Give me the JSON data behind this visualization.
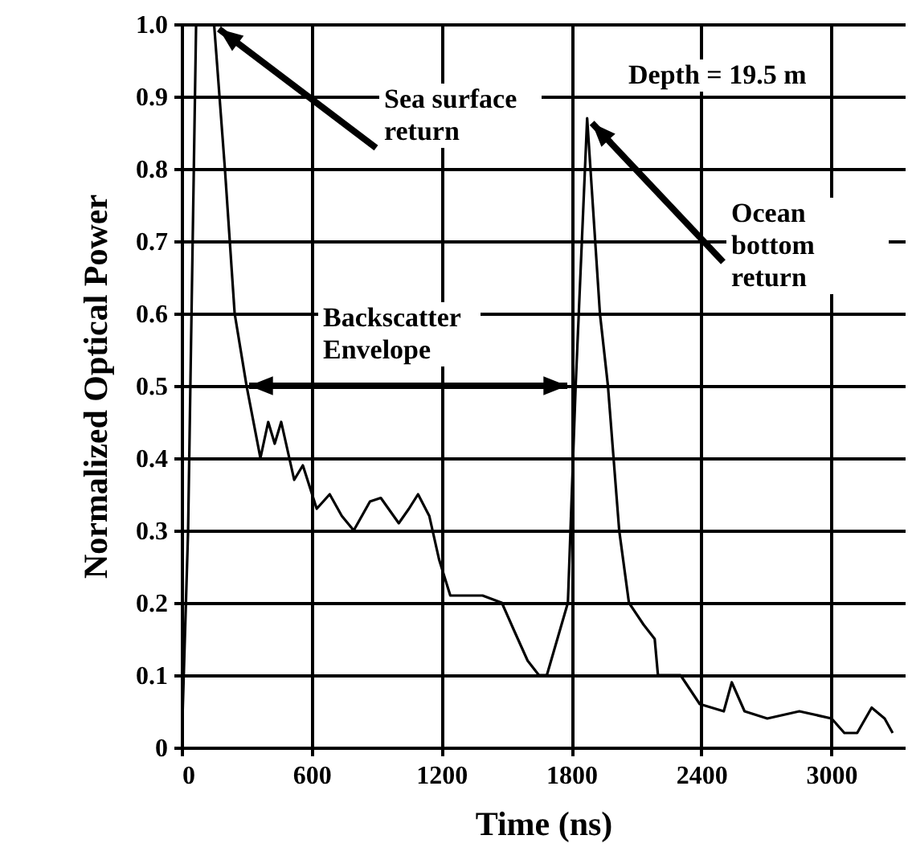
{
  "chart_data": {
    "type": "line",
    "xlabel": "Time (ns)",
    "ylabel": "Normalized Optical Power",
    "xlim": [
      0,
      3340
    ],
    "ylim": [
      0,
      1
    ],
    "xticks": [
      0,
      600,
      1200,
      1800,
      2400,
      3000
    ],
    "yticks": [
      0,
      0.1,
      0.2,
      0.3,
      0.4,
      0.5,
      0.6,
      0.7,
      0.8,
      0.9,
      {
        "value": 1,
        "label": "1.0"
      }
    ],
    "grid": true,
    "marker": "none",
    "line_style": "solid",
    "annotations": [
      {
        "text": "Sea surface return",
        "x": 150,
        "y": 1.0
      },
      "Backscatter Envelope",
      "Depth = 19.5 m",
      {
        "text": "Ocean bottom return",
        "x": 1873,
        "y": 0.87
      }
    ],
    "x": [
      0,
      30,
      67,
      150,
      200,
      245,
      300,
      364,
      400,
      430,
      460,
      520,
      560,
      624,
      684,
      740,
      795,
      870,
      920,
      1003,
      1050,
      1092,
      1144,
      1189,
      1241,
      1390,
      1479,
      1538,
      1598,
      1650,
      1687,
      1784,
      1820,
      1873,
      1932,
      1969,
      2021,
      2066,
      2133,
      2185,
      2200,
      2304,
      2393,
      2504,
      2541,
      2600,
      2705,
      2853,
      3002,
      3061,
      3120,
      3187,
      3247,
      3284
    ],
    "series": [
      {
        "color": "#000000",
        "values": [
          0,
          0.3,
          1.0,
          1.0,
          0.8,
          0.6,
          0.5,
          0.4,
          0.45,
          0.42,
          0.45,
          0.37,
          0.39,
          0.33,
          0.35,
          0.32,
          0.3,
          0.34,
          0.345,
          0.31,
          0.33,
          0.35,
          0.32,
          0.26,
          0.21,
          0.21,
          0.2,
          0.16,
          0.12,
          0.1,
          0.1,
          0.2,
          0.5,
          0.87,
          0.6,
          0.5,
          0.3,
          0.2,
          0.17,
          0.15,
          0.1,
          0.1,
          0.06,
          0.05,
          0.09,
          0.05,
          0.04,
          0.05,
          0.04,
          0.02,
          0.02,
          0.055,
          0.04,
          0.02
        ]
      }
    ]
  }
}
